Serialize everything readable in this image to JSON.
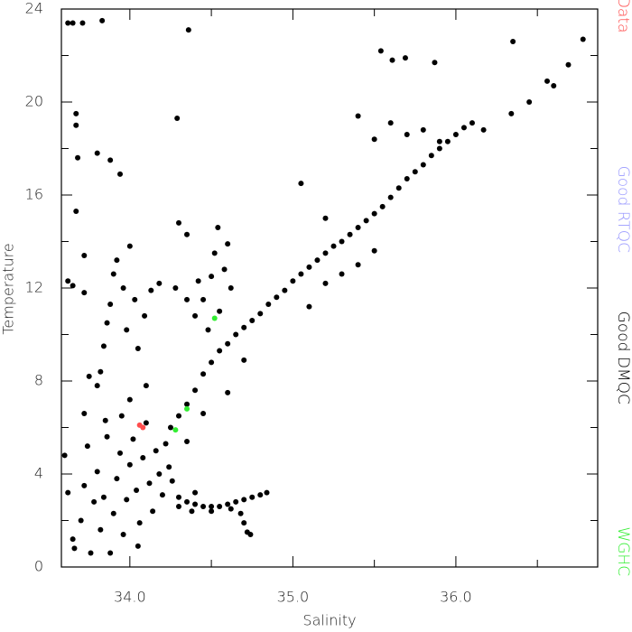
{
  "chart_data": {
    "type": "scatter",
    "xlabel": "Salinity",
    "ylabel": "Temperature",
    "xlim": [
      33.58,
      36.87
    ],
    "ylim": [
      0,
      24
    ],
    "xticks": [
      {
        "value": 34,
        "label": "34.0"
      },
      {
        "value": 35,
        "label": "35.0"
      },
      {
        "value": 36,
        "label": "36.0"
      }
    ],
    "xminorticks": [
      34.5,
      35.5,
      36.5
    ],
    "yticks": [
      0,
      4,
      8,
      12,
      16,
      20,
      24
    ],
    "yminorticks": [
      2,
      6,
      10,
      14,
      18,
      22
    ],
    "series": [
      {
        "name": "Bad Data",
        "color": "#ff4d4d",
        "x": [
          34.06,
          34.08
        ],
        "y": [
          6.1,
          6.0
        ]
      },
      {
        "name": "Good RTQC",
        "color": "#9a9aff",
        "x": [],
        "y": []
      },
      {
        "name": "Good DMQC",
        "color": "#000000",
        "x": [
          33.62,
          33.65,
          33.71,
          33.83,
          34.36,
          35.54,
          35.61,
          35.69,
          35.87,
          36.35,
          36.78,
          36.69,
          36.56,
          36.6,
          36.45,
          36.34,
          33.67,
          33.67,
          33.68,
          33.67,
          33.62,
          33.65,
          33.8,
          33.88,
          33.94,
          34.29,
          33.72,
          33.72,
          33.6,
          33.62,
          33.65,
          33.66,
          33.7,
          33.72,
          33.74,
          33.76,
          33.78,
          33.8,
          33.82,
          33.84,
          33.86,
          33.88,
          33.9,
          33.92,
          33.94,
          33.96,
          33.98,
          34.0,
          34.02,
          34.04,
          34.06,
          34.08,
          34.1,
          34.12,
          34.14,
          34.16,
          34.18,
          34.2,
          34.22,
          34.24,
          34.26,
          34.05,
          33.85,
          33.95,
          34.0,
          34.1,
          33.8,
          33.82,
          33.84,
          33.86,
          33.88,
          33.9,
          33.92,
          33.96,
          34.0,
          34.03,
          33.98,
          34.05,
          34.09,
          34.13,
          34.18,
          33.75,
          33.72,
          34.3,
          34.35,
          34.4,
          34.45,
          34.5,
          34.55,
          34.6,
          34.65,
          34.7,
          34.75,
          34.8,
          34.84,
          34.38,
          34.5,
          34.62,
          34.68,
          34.7,
          34.72,
          34.74,
          34.3,
          34.4,
          34.25,
          34.3,
          34.35,
          34.4,
          34.45,
          34.5,
          34.55,
          34.6,
          34.65,
          34.7,
          34.75,
          34.8,
          34.85,
          34.9,
          34.95,
          35.0,
          35.05,
          35.1,
          35.15,
          35.2,
          35.25,
          35.3,
          35.35,
          35.4,
          35.45,
          35.5,
          35.55,
          35.6,
          35.65,
          35.7,
          35.75,
          35.8,
          35.85,
          35.9,
          35.95,
          36.0,
          36.05,
          36.1,
          36.17,
          35.4,
          35.5,
          35.3,
          35.2,
          35.1,
          35.05,
          35.2,
          35.4,
          35.5,
          35.6,
          35.7,
          35.8,
          35.9,
          34.6,
          34.7,
          34.45,
          34.35,
          34.45,
          34.5,
          34.52,
          34.54,
          34.55,
          34.58,
          34.6,
          34.62,
          34.48,
          34.4,
          34.35,
          34.42,
          34.3,
          34.35,
          34.28
        ],
        "y": [
          23.4,
          23.4,
          23.4,
          23.5,
          23.1,
          22.2,
          21.8,
          21.9,
          21.7,
          22.6,
          22.7,
          21.6,
          20.9,
          20.7,
          20.0,
          19.5,
          19.5,
          19.0,
          17.6,
          15.3,
          12.3,
          12.1,
          17.8,
          17.5,
          16.9,
          19.3,
          13.4,
          11.8,
          4.8,
          3.2,
          1.2,
          0.8,
          2.0,
          3.5,
          5.2,
          0.6,
          2.8,
          4.1,
          1.6,
          3.0,
          5.6,
          0.6,
          2.3,
          3.8,
          4.9,
          1.4,
          2.9,
          4.4,
          5.5,
          3.3,
          1.9,
          4.7,
          6.2,
          3.6,
          2.4,
          5.0,
          4.0,
          3.1,
          5.3,
          4.3,
          3.7,
          0.9,
          6.3,
          6.5,
          7.2,
          7.8,
          7.8,
          8.4,
          9.5,
          10.5,
          11.3,
          12.6,
          13.2,
          12.0,
          13.8,
          11.5,
          10.2,
          9.4,
          10.8,
          11.9,
          12.2,
          8.2,
          6.6,
          3.0,
          2.8,
          2.7,
          2.6,
          2.6,
          2.6,
          2.7,
          2.8,
          2.9,
          3.0,
          3.1,
          3.2,
          2.4,
          2.4,
          2.5,
          2.3,
          1.9,
          1.5,
          1.4,
          2.6,
          3.2,
          6.0,
          6.5,
          7.0,
          7.6,
          8.3,
          8.8,
          9.3,
          9.6,
          10.0,
          10.3,
          10.6,
          10.9,
          11.3,
          11.6,
          11.9,
          12.3,
          12.6,
          12.9,
          13.2,
          13.5,
          13.8,
          14.0,
          14.3,
          14.6,
          14.9,
          15.2,
          15.5,
          15.9,
          16.3,
          16.7,
          17.0,
          17.3,
          17.7,
          18.0,
          18.3,
          18.6,
          18.9,
          19.1,
          18.8,
          13.0,
          13.6,
          12.6,
          12.2,
          11.2,
          16.5,
          15.0,
          19.4,
          18.4,
          19.1,
          18.6,
          18.8,
          18.3,
          7.5,
          8.9,
          6.6,
          5.4,
          11.5,
          12.5,
          13.5,
          14.6,
          11.0,
          12.8,
          13.9,
          12.0,
          10.2,
          10.8,
          11.5,
          12.3,
          14.8,
          14.3,
          12.0
        ]
      },
      {
        "name": "WGHC",
        "color": "#33ee33",
        "x": [
          34.28,
          34.35,
          34.52
        ],
        "y": [
          5.9,
          6.8,
          10.7
        ]
      }
    ]
  }
}
